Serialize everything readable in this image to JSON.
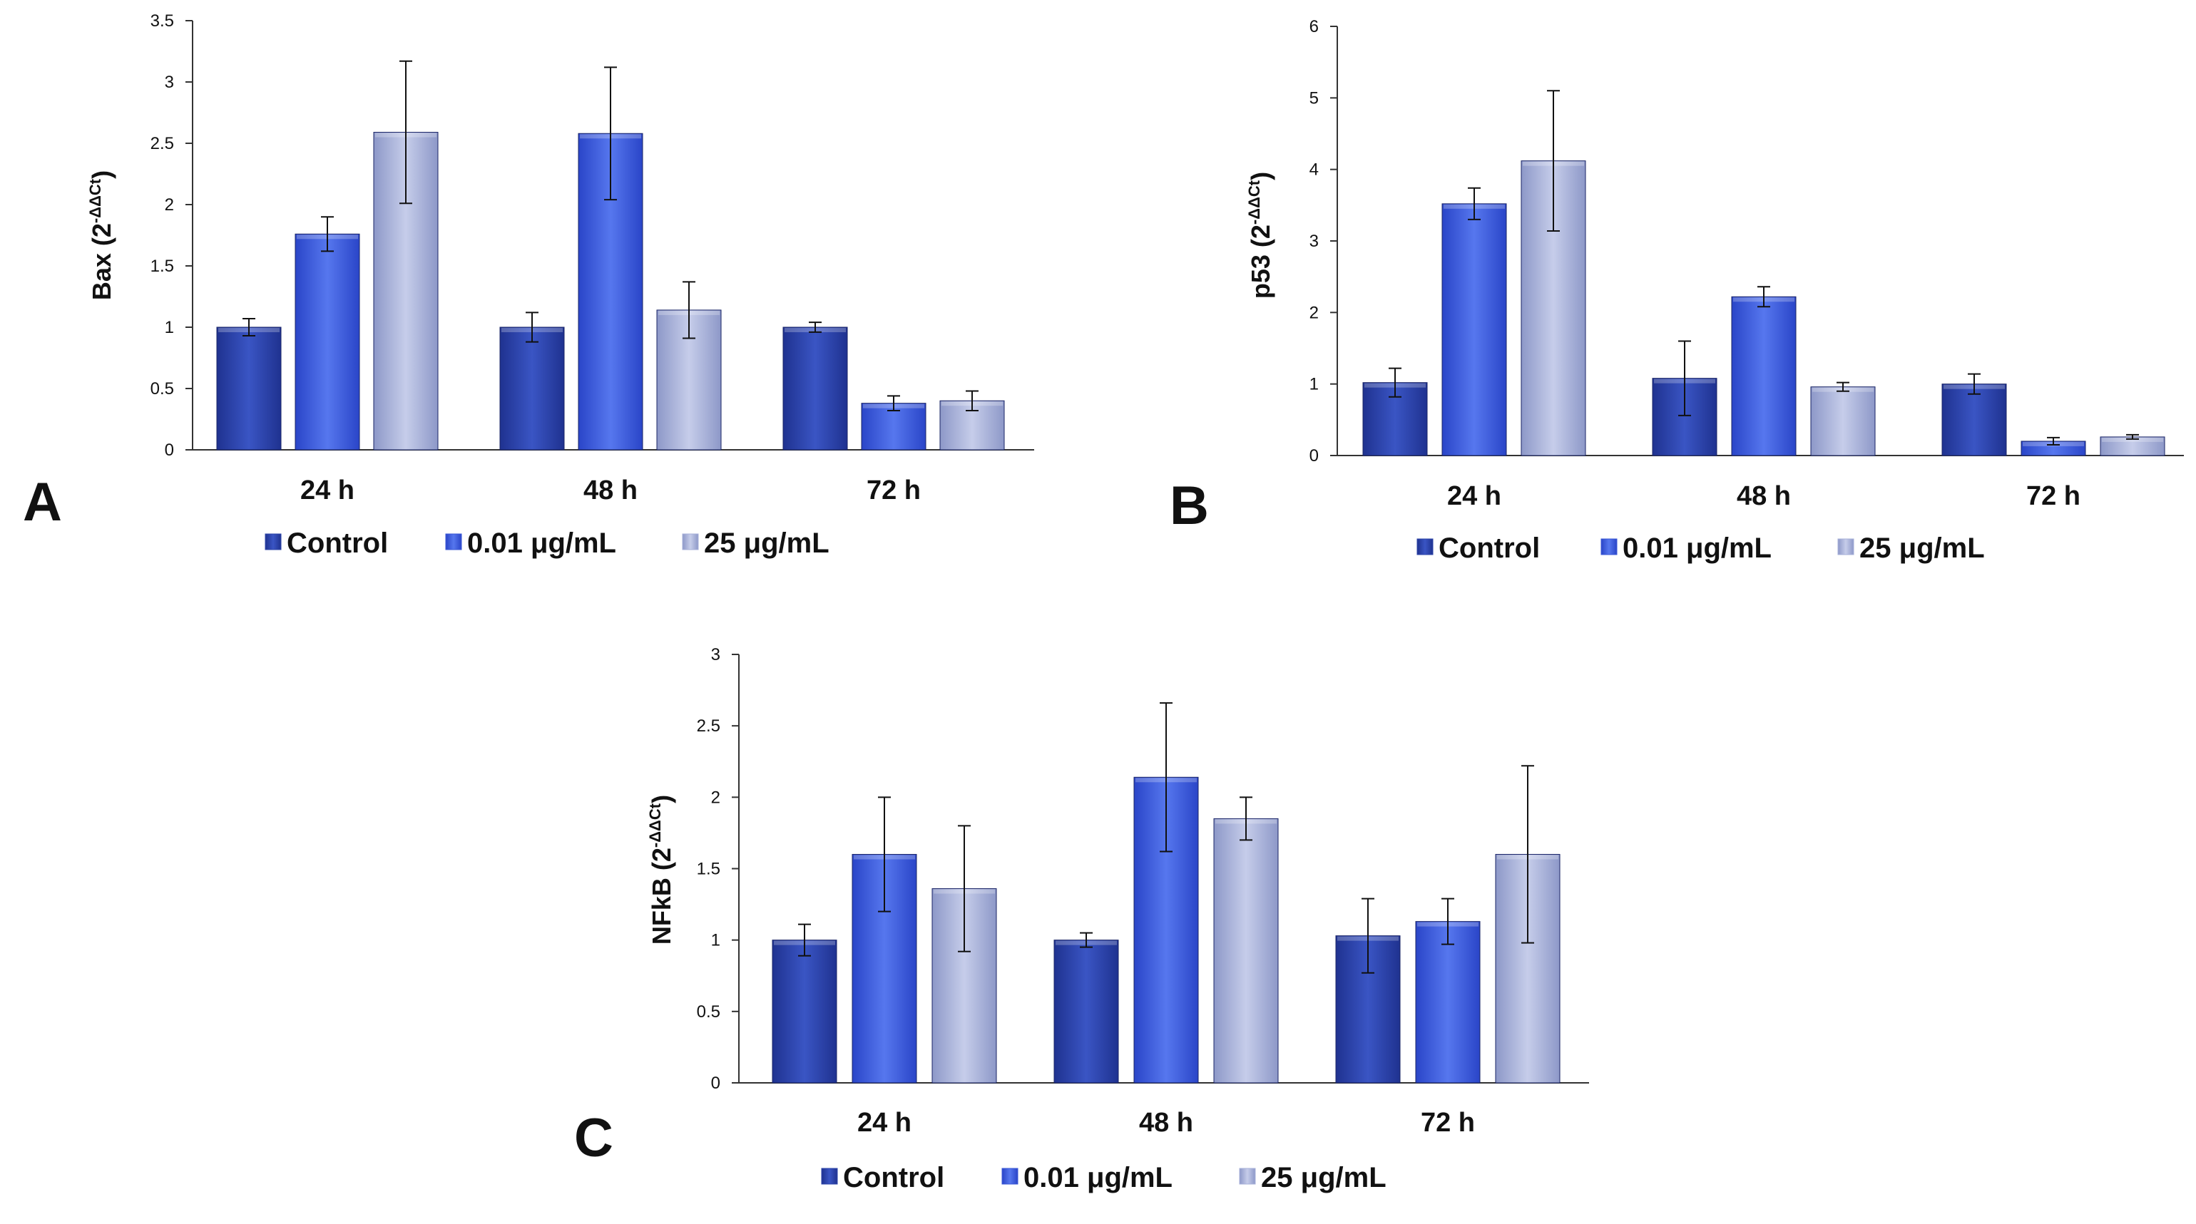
{
  "colors": {
    "control": "#2d44a8",
    "low": "#3a57d6",
    "high": "#a7b0d9",
    "axis": "#333333"
  },
  "chart_data": [
    {
      "type": "bar",
      "panel": "A",
      "ylabel": "Bax",
      "ylabel_expr": "2",
      "ylabel_sup": "-ΔΔCt",
      "categories": [
        "24 h",
        "48 h",
        "72 h"
      ],
      "ylim": [
        0,
        3.5
      ],
      "yticks": [
        "0",
        "0.5",
        "1",
        "1.5",
        "2",
        "2.5",
        "3",
        "3.5"
      ],
      "series": [
        {
          "name": "Control",
          "values": [
            1.0,
            1.0,
            1.0
          ],
          "errors": [
            0.07,
            0.12,
            0.04
          ]
        },
        {
          "name": "0.01 μg/mL",
          "values": [
            1.76,
            2.58,
            0.38
          ],
          "errors": [
            0.14,
            0.54,
            0.06
          ]
        },
        {
          "name": "25 μg/mL",
          "values": [
            2.59,
            1.14,
            0.4
          ],
          "errors": [
            0.58,
            0.23,
            0.08
          ]
        }
      ]
    },
    {
      "type": "bar",
      "panel": "B",
      "ylabel": "p53",
      "ylabel_expr": "2",
      "ylabel_sup": "-ΔΔCt",
      "categories": [
        "24 h",
        "48 h",
        "72 h"
      ],
      "ylim": [
        0,
        6
      ],
      "yticks": [
        "0",
        "1",
        "2",
        "3",
        "4",
        "5",
        "6"
      ],
      "series": [
        {
          "name": "Control",
          "values": [
            1.02,
            1.08,
            1.0
          ],
          "errors": [
            0.2,
            0.52,
            0.14
          ]
        },
        {
          "name": "0.01 μg/mL",
          "values": [
            3.52,
            2.22,
            0.2
          ],
          "errors": [
            0.22,
            0.14,
            0.05
          ]
        },
        {
          "name": "25 μg/mL",
          "values": [
            4.12,
            0.96,
            0.26
          ],
          "errors": [
            0.98,
            0.06,
            0.03
          ]
        }
      ]
    },
    {
      "type": "bar",
      "panel": "C",
      "ylabel": "NFkB",
      "ylabel_expr": "2",
      "ylabel_sup": "-ΔΔCt",
      "categories": [
        "24 h",
        "48 h",
        "72 h"
      ],
      "ylim": [
        0,
        3
      ],
      "yticks": [
        "0",
        "0.5",
        "1",
        "1.5",
        "2",
        "2.5",
        "3"
      ],
      "series": [
        {
          "name": "Control",
          "values": [
            1.0,
            1.0,
            1.03
          ],
          "errors": [
            0.11,
            0.05,
            0.26
          ]
        },
        {
          "name": "0.01 μg/mL",
          "values": [
            1.6,
            2.14,
            1.13
          ],
          "errors": [
            0.4,
            0.52,
            0.16
          ]
        },
        {
          "name": "25 μg/mL",
          "values": [
            1.36,
            1.85,
            1.6
          ],
          "errors": [
            0.44,
            0.15,
            0.62
          ]
        }
      ]
    }
  ]
}
